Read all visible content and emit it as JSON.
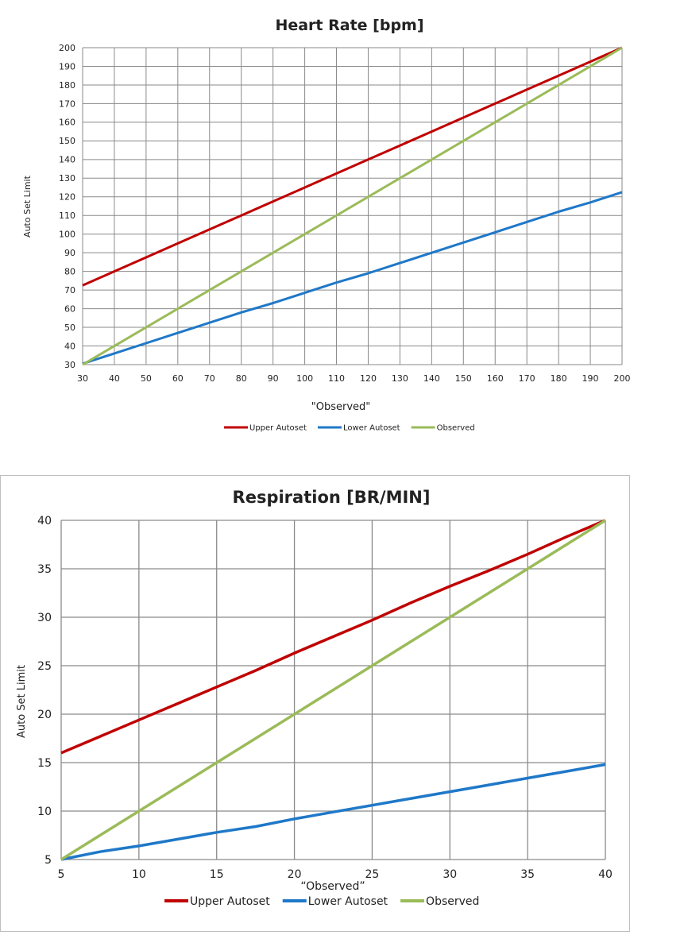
{
  "chart_data": [
    {
      "type": "line",
      "title": "Heart Rate [bpm]",
      "xlabel": "\"Observed\"",
      "ylabel": "Auto Set Limit",
      "xlim": [
        30,
        200
      ],
      "ylim": [
        30,
        200
      ],
      "x_ticks": [
        30,
        40,
        50,
        60,
        70,
        80,
        90,
        100,
        110,
        120,
        130,
        140,
        150,
        160,
        170,
        180,
        190,
        200
      ],
      "y_ticks": [
        30,
        40,
        50,
        60,
        70,
        80,
        90,
        100,
        110,
        120,
        130,
        140,
        150,
        160,
        170,
        180,
        190,
        200
      ],
      "grid": true,
      "legend": "bottom",
      "series": [
        {
          "name": "Upper Autoset",
          "color": "#c00000",
          "x": [
            30,
            40,
            50,
            60,
            70,
            80,
            90,
            100,
            110,
            120,
            130,
            140,
            150,
            160,
            170,
            180,
            190,
            200
          ],
          "values": [
            72.5,
            80,
            87.5,
            95,
            102.5,
            110,
            117.5,
            125,
            132.5,
            140,
            147.5,
            155,
            162.5,
            170,
            177.5,
            185,
            192.5,
            200
          ]
        },
        {
          "name": "Lower Autoset",
          "color": "#1f78c8",
          "x": [
            30,
            40,
            50,
            60,
            70,
            80,
            90,
            100,
            110,
            120,
            130,
            140,
            150,
            160,
            170,
            180,
            190,
            200
          ],
          "values": [
            30.5,
            36,
            41.5,
            47,
            52.5,
            58,
            63,
            68.5,
            74,
            79,
            84.5,
            90,
            95.5,
            101,
            106.5,
            112,
            117,
            122.5
          ]
        },
        {
          "name": "Observed",
          "color": "#9bbb59",
          "x": [
            30,
            200
          ],
          "values": [
            30,
            200
          ]
        }
      ]
    },
    {
      "type": "line",
      "title": "Respiration [BR/MIN]",
      "xlabel": "“Observed”",
      "ylabel": "Auto Set Limit",
      "xlim": [
        5,
        40
      ],
      "ylim": [
        5,
        40
      ],
      "x_ticks": [
        5,
        10,
        15,
        20,
        25,
        30,
        35,
        40
      ],
      "y_ticks": [
        5,
        10,
        15,
        20,
        25,
        30,
        35,
        40
      ],
      "grid": true,
      "legend": "bottom",
      "series": [
        {
          "name": "Upper Autoset",
          "color": "#c00000",
          "x": [
            5,
            7.5,
            10,
            12.5,
            15,
            17.5,
            20,
            22.5,
            25,
            27.5,
            30,
            32.5,
            35,
            37.5,
            40
          ],
          "values": [
            16,
            17.7,
            19.4,
            21.1,
            22.8,
            24.5,
            26.3,
            28,
            29.7,
            31.5,
            33.2,
            34.8,
            36.5,
            38.3,
            40
          ]
        },
        {
          "name": "Lower Autoset",
          "color": "#1f78c8",
          "x": [
            5,
            7.5,
            10,
            12.5,
            15,
            17.5,
            20,
            22.5,
            25,
            27.5,
            30,
            32.5,
            35,
            37.5,
            40
          ],
          "values": [
            5,
            5.8,
            6.4,
            7.1,
            7.8,
            8.4,
            9.2,
            9.9,
            10.6,
            11.3,
            12,
            12.7,
            13.4,
            14.1,
            14.8
          ]
        },
        {
          "name": "Observed",
          "color": "#9bbb59",
          "x": [
            5,
            40
          ],
          "values": [
            5,
            40
          ]
        }
      ]
    }
  ]
}
